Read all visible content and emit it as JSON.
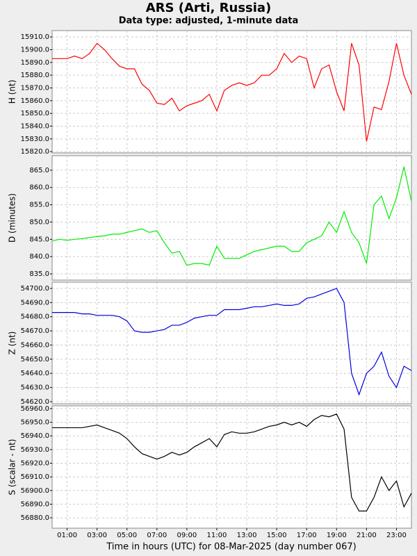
{
  "title": "ARS (Arti, Russia)",
  "subtitle": "Data type: adjusted, 1-minute data",
  "xlabel": "Time in hours (UTC) for 08-Mar-2025 (day number 067)",
  "chart_data": [
    {
      "type": "line",
      "ylabel": "H (nt)",
      "color": "#ff0000",
      "grid": true,
      "x": [
        0,
        0.5,
        1,
        1.5,
        2,
        2.5,
        3,
        3.5,
        4,
        4.5,
        5,
        5.5,
        6,
        6.5,
        7,
        7.5,
        8,
        8.5,
        9,
        9.5,
        10,
        10.5,
        11,
        11.5,
        12,
        12.5,
        13,
        13.5,
        14,
        14.5,
        15,
        15.5,
        16,
        16.5,
        17,
        17.5,
        18,
        18.5,
        19,
        19.5,
        20,
        20.5,
        21,
        21.5,
        22,
        22.5,
        23,
        23.5,
        24
      ],
      "values": [
        15893,
        15893,
        15893,
        15895,
        15893,
        15897,
        15905,
        15900,
        15893,
        15887,
        15885,
        15885,
        15873,
        15868,
        15858,
        15857,
        15862,
        15852,
        15856,
        15858,
        15860,
        15865,
        15852,
        15868,
        15872,
        15874,
        15872,
        15874,
        15880,
        15880,
        15885,
        15897,
        15890,
        15895,
        15893,
        15870,
        15885,
        15888,
        15867,
        15852,
        15905,
        15888,
        15828,
        15855,
        15853,
        15875,
        15905,
        15880,
        15865
      ],
      "xlim": [
        0,
        24
      ],
      "ylim": [
        15819,
        15915
      ],
      "yticks": [
        {
          "value": 15820,
          "label": "15820.0"
        },
        {
          "value": 15830,
          "label": "15830.0"
        },
        {
          "value": 15840,
          "label": "15840.0"
        },
        {
          "value": 15850,
          "label": "15850.0"
        },
        {
          "value": 15860,
          "label": "15860.0"
        },
        {
          "value": 15870,
          "label": "15870.0"
        },
        {
          "value": 15880,
          "label": "15880.0"
        },
        {
          "value": 15890,
          "label": "15890.0"
        },
        {
          "value": 15900,
          "label": "15900.0"
        },
        {
          "value": 15910,
          "label": "15910.0"
        }
      ]
    },
    {
      "type": "line",
      "ylabel": "D (minutes)",
      "color": "#00ee00",
      "grid": true,
      "x": [
        0,
        0.5,
        1,
        1.5,
        2,
        2.5,
        3,
        3.5,
        4,
        4.5,
        5,
        5.5,
        6,
        6.5,
        7,
        7.5,
        8,
        8.5,
        9,
        9.5,
        10,
        10.5,
        11,
        11.5,
        12,
        12.5,
        13,
        13.5,
        14,
        14.5,
        15,
        15.5,
        16,
        16.5,
        17,
        17.5,
        18,
        18.5,
        19,
        19.5,
        20,
        20.5,
        21,
        21.5,
        22,
        22.5,
        23,
        23.5,
        24
      ],
      "values": [
        844.5,
        845,
        844.7,
        845,
        845.2,
        845.5,
        845.8,
        846,
        846.5,
        846.5,
        847,
        847.5,
        848,
        847,
        847.5,
        844,
        841,
        841.5,
        837.5,
        838,
        838,
        837.5,
        843,
        839.5,
        839.5,
        839.5,
        840.5,
        841.5,
        842,
        842.5,
        843,
        843,
        841.5,
        841.5,
        844,
        845,
        846,
        850,
        847,
        853,
        847,
        844,
        838,
        855,
        857.5,
        851,
        857,
        866,
        856
      ],
      "xlim": [
        0,
        24
      ],
      "ylim": [
        833.2,
        869.2
      ],
      "yticks": [
        {
          "value": 835,
          "label": "835.0"
        },
        {
          "value": 840,
          "label": "840.0"
        },
        {
          "value": 845,
          "label": "845.0"
        },
        {
          "value": 850,
          "label": "850.0"
        },
        {
          "value": 855,
          "label": "855.0"
        },
        {
          "value": 860,
          "label": "860.0"
        },
        {
          "value": 865,
          "label": "865.0"
        }
      ]
    },
    {
      "type": "line",
      "ylabel": "Z (nt)",
      "color": "#0000dd",
      "grid": true,
      "x": [
        0,
        0.5,
        1,
        1.5,
        2,
        2.5,
        3,
        3.5,
        4,
        4.5,
        5,
        5.5,
        6,
        6.5,
        7,
        7.5,
        8,
        8.5,
        9,
        9.5,
        10,
        10.5,
        11,
        11.5,
        12,
        12.5,
        13,
        13.5,
        14,
        14.5,
        15,
        15.5,
        16,
        16.5,
        17,
        17.5,
        18,
        18.5,
        19,
        19.5,
        20,
        20.5,
        21,
        21.5,
        22,
        22.5,
        23,
        23.5,
        24
      ],
      "values": [
        54683,
        54683,
        54683,
        54683,
        54682,
        54682,
        54681,
        54681,
        54681,
        54680,
        54677,
        54670,
        54669,
        54669,
        54670,
        54671,
        54674,
        54674,
        54676,
        54679,
        54680,
        54681,
        54681,
        54685,
        54685,
        54685,
        54686,
        54687,
        54687,
        54688,
        54689,
        54688,
        54688,
        54689,
        54693,
        54694,
        54696,
        54698,
        54700,
        54690,
        54640,
        54625,
        54640,
        54645,
        54655,
        54638,
        54630,
        54645,
        54642
      ],
      "xlim": [
        0,
        24
      ],
      "ylim": [
        54618.5,
        54704.4
      ],
      "yticks": [
        {
          "value": 54620,
          "label": "54620.0"
        },
        {
          "value": 54630,
          "label": "54630.0"
        },
        {
          "value": 54640,
          "label": "54640.0"
        },
        {
          "value": 54650,
          "label": "54650.0"
        },
        {
          "value": 54660,
          "label": "54660.0"
        },
        {
          "value": 54670,
          "label": "54670.0"
        },
        {
          "value": 54680,
          "label": "54680.0"
        },
        {
          "value": 54690,
          "label": "54690.0"
        },
        {
          "value": 54700,
          "label": "54700.0"
        }
      ]
    },
    {
      "type": "line",
      "ylabel": "S (scalar - nt)",
      "color": "#000000",
      "grid": true,
      "x": [
        0,
        0.5,
        1,
        1.5,
        2,
        2.5,
        3,
        3.5,
        4,
        4.5,
        5,
        5.5,
        6,
        6.5,
        7,
        7.5,
        8,
        8.5,
        9,
        9.5,
        10,
        10.5,
        11,
        11.5,
        12,
        12.5,
        13,
        13.5,
        14,
        14.5,
        15,
        15.5,
        16,
        16.5,
        17,
        17.5,
        18,
        18.5,
        19,
        19.5,
        20,
        20.5,
        21,
        21.5,
        22,
        22.5,
        23,
        23.5,
        24
      ],
      "values": [
        56946,
        56946,
        56946,
        56946,
        56946,
        56947,
        56948,
        56946,
        56944,
        56942,
        56938,
        56932,
        56927,
        56925,
        56923,
        56925,
        56928,
        56926,
        56928,
        56932,
        56935,
        56938,
        56932,
        56941,
        56943,
        56942,
        56942,
        56943,
        56945,
        56947,
        56948,
        56950,
        56948,
        56950,
        56947,
        56952,
        56955,
        56954,
        56956,
        56945,
        56895,
        56885,
        56885,
        56895,
        56910,
        56900,
        56907,
        56888,
        56898
      ],
      "xlim": [
        0,
        24
      ],
      "ylim": [
        56872.4,
        56962
      ],
      "yticks": [
        {
          "value": 56880,
          "label": "56880.0"
        },
        {
          "value": 56890,
          "label": "56890.0"
        },
        {
          "value": 56900,
          "label": "56900.0"
        },
        {
          "value": 56910,
          "label": "56910.0"
        },
        {
          "value": 56920,
          "label": "56920.0"
        },
        {
          "value": 56930,
          "label": "56930.0"
        },
        {
          "value": 56940,
          "label": "56940.0"
        },
        {
          "value": 56950,
          "label": "56950.0"
        },
        {
          "value": 56960,
          "label": "56960.0"
        }
      ],
      "xticks": [
        {
          "value": 1,
          "label": "01:00"
        },
        {
          "value": 3,
          "label": "03:00"
        },
        {
          "value": 5,
          "label": "05:00"
        },
        {
          "value": 7,
          "label": "07:00"
        },
        {
          "value": 9,
          "label": "09:00"
        },
        {
          "value": 11,
          "label": "11:00"
        },
        {
          "value": 13,
          "label": "13:00"
        },
        {
          "value": 15,
          "label": "15:00"
        },
        {
          "value": 17,
          "label": "17:00"
        },
        {
          "value": 19,
          "label": "19:00"
        },
        {
          "value": 21,
          "label": "21:00"
        },
        {
          "value": 23,
          "label": "23:00"
        }
      ]
    }
  ]
}
